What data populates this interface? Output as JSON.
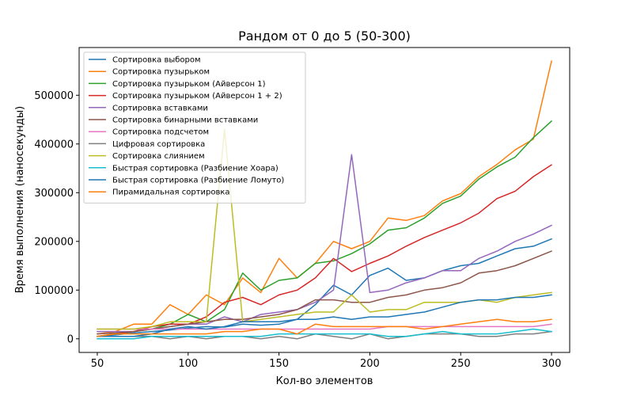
{
  "chart_data": {
    "type": "line",
    "title": "Рандом от 0 до 5 (50-300)",
    "xlabel": "Кол-во элементов",
    "ylabel": "Время выполнения (наносекунды)",
    "xlim": [
      40,
      310
    ],
    "ylim": [
      -28000,
      598000
    ],
    "xticks": [
      50,
      100,
      150,
      200,
      250,
      300
    ],
    "yticks": [
      0,
      100000,
      200000,
      300000,
      400000,
      500000
    ],
    "grid": false,
    "legend_position": "top-left",
    "x": [
      50,
      60,
      70,
      80,
      90,
      100,
      110,
      120,
      130,
      140,
      150,
      160,
      170,
      180,
      190,
      200,
      210,
      220,
      230,
      240,
      250,
      260,
      270,
      280,
      290,
      300
    ],
    "series": [
      {
        "name": "Сортировка выбором",
        "color": "#1f77b4",
        "values": [
          5000,
          8000,
          12000,
          15000,
          18000,
          22000,
          25000,
          24000,
          30000,
          28000,
          30000,
          40000,
          70000,
          110000,
          90000,
          130000,
          145000,
          120000,
          125000,
          140000,
          150000,
          155000,
          170000,
          185000,
          190000,
          205000
        ]
      },
      {
        "name": "Сортировка пузырьком",
        "color": "#ff7f0e",
        "values": [
          10000,
          15000,
          30000,
          30000,
          70000,
          50000,
          90000,
          70000,
          125000,
          95000,
          165000,
          125000,
          155000,
          200000,
          185000,
          200000,
          248000,
          243000,
          253000,
          283000,
          298000,
          333000,
          358000,
          388000,
          410000,
          570000
        ]
      },
      {
        "name": "Сортировка пузырьком (Айверсон 1)",
        "color": "#2ca02c",
        "values": [
          5000,
          10000,
          15000,
          20000,
          30000,
          50000,
          35000,
          60000,
          135000,
          100000,
          120000,
          125000,
          155000,
          160000,
          175000,
          195000,
          223000,
          228000,
          248000,
          278000,
          293000,
          328000,
          353000,
          373000,
          413000,
          447000
        ]
      },
      {
        "name": "Сортировка пузырьком (Айверсон 1 + 2)",
        "color": "#d62728",
        "values": [
          5000,
          10000,
          15000,
          25000,
          30000,
          30000,
          45000,
          75000,
          85000,
          70000,
          90000,
          100000,
          125000,
          165000,
          138000,
          155000,
          170000,
          190000,
          208000,
          223000,
          238000,
          258000,
          288000,
          303000,
          333000,
          357000
        ]
      },
      {
        "name": "Сортировка вставками",
        "color": "#9467bd",
        "values": [
          15000,
          15000,
          15000,
          20000,
          25000,
          30000,
          30000,
          45000,
          35000,
          50000,
          55000,
          60000,
          75000,
          100000,
          378000,
          95000,
          100000,
          115000,
          125000,
          140000,
          140000,
          165000,
          180000,
          200000,
          215000,
          233000
        ]
      },
      {
        "name": "Сортировка бинарными вставками",
        "color": "#8c564b",
        "values": [
          10000,
          12000,
          15000,
          20000,
          25000,
          30000,
          35000,
          40000,
          40000,
          45000,
          50000,
          60000,
          80000,
          80000,
          75000,
          75000,
          85000,
          90000,
          100000,
          105000,
          115000,
          135000,
          140000,
          150000,
          165000,
          180000
        ]
      },
      {
        "name": "Сортировка подсчетом",
        "color": "#e377c2",
        "values": [
          20000,
          20000,
          20000,
          20000,
          20000,
          20000,
          20000,
          20000,
          20000,
          20000,
          20000,
          20000,
          20000,
          20000,
          20000,
          20000,
          25000,
          25000,
          25000,
          25000,
          25000,
          25000,
          25000,
          25000,
          25000,
          30000
        ]
      },
      {
        "name": "Цифровая сортировка",
        "color": "#7f7f7f",
        "values": [
          5000,
          5000,
          5000,
          5000,
          0,
          5000,
          0,
          5000,
          5000,
          0,
          5000,
          0,
          10000,
          5000,
          0,
          10000,
          0,
          5000,
          10000,
          10000,
          10000,
          5000,
          5000,
          10000,
          10000,
          15000
        ]
      },
      {
        "name": "Сортировка слиянием",
        "color": "#bcbd22",
        "values": [
          20000,
          20000,
          20000,
          25000,
          35000,
          35000,
          35000,
          430000,
          35000,
          40000,
          45000,
          50000,
          55000,
          55000,
          90000,
          55000,
          60000,
          60000,
          75000,
          75000,
          75000,
          80000,
          75000,
          85000,
          90000,
          95000
        ]
      },
      {
        "name": "Быстрая сортировка (Разбиение Хоара)",
        "color": "#17becf",
        "values": [
          0,
          0,
          0,
          5000,
          5000,
          5000,
          5000,
          5000,
          5000,
          5000,
          10000,
          10000,
          10000,
          10000,
          10000,
          10000,
          5000,
          5000,
          10000,
          15000,
          10000,
          10000,
          10000,
          15000,
          20000,
          15000
        ]
      },
      {
        "name": "Быстрая сортировка (Разбиение Ломуто)",
        "color": "#1f77b4",
        "values": [
          5000,
          5000,
          5000,
          10000,
          20000,
          25000,
          20000,
          25000,
          35000,
          35000,
          35000,
          40000,
          40000,
          45000,
          40000,
          45000,
          45000,
          50000,
          55000,
          65000,
          75000,
          80000,
          80000,
          85000,
          85000,
          90000
        ]
      },
      {
        "name": "Пирамидальная сортировка",
        "color": "#ff7f0e",
        "values": [
          5000,
          10000,
          10000,
          10000,
          10000,
          10000,
          10000,
          15000,
          15000,
          20000,
          20000,
          10000,
          30000,
          25000,
          25000,
          25000,
          25000,
          25000,
          20000,
          25000,
          30000,
          35000,
          40000,
          35000,
          35000,
          40000
        ]
      }
    ]
  }
}
